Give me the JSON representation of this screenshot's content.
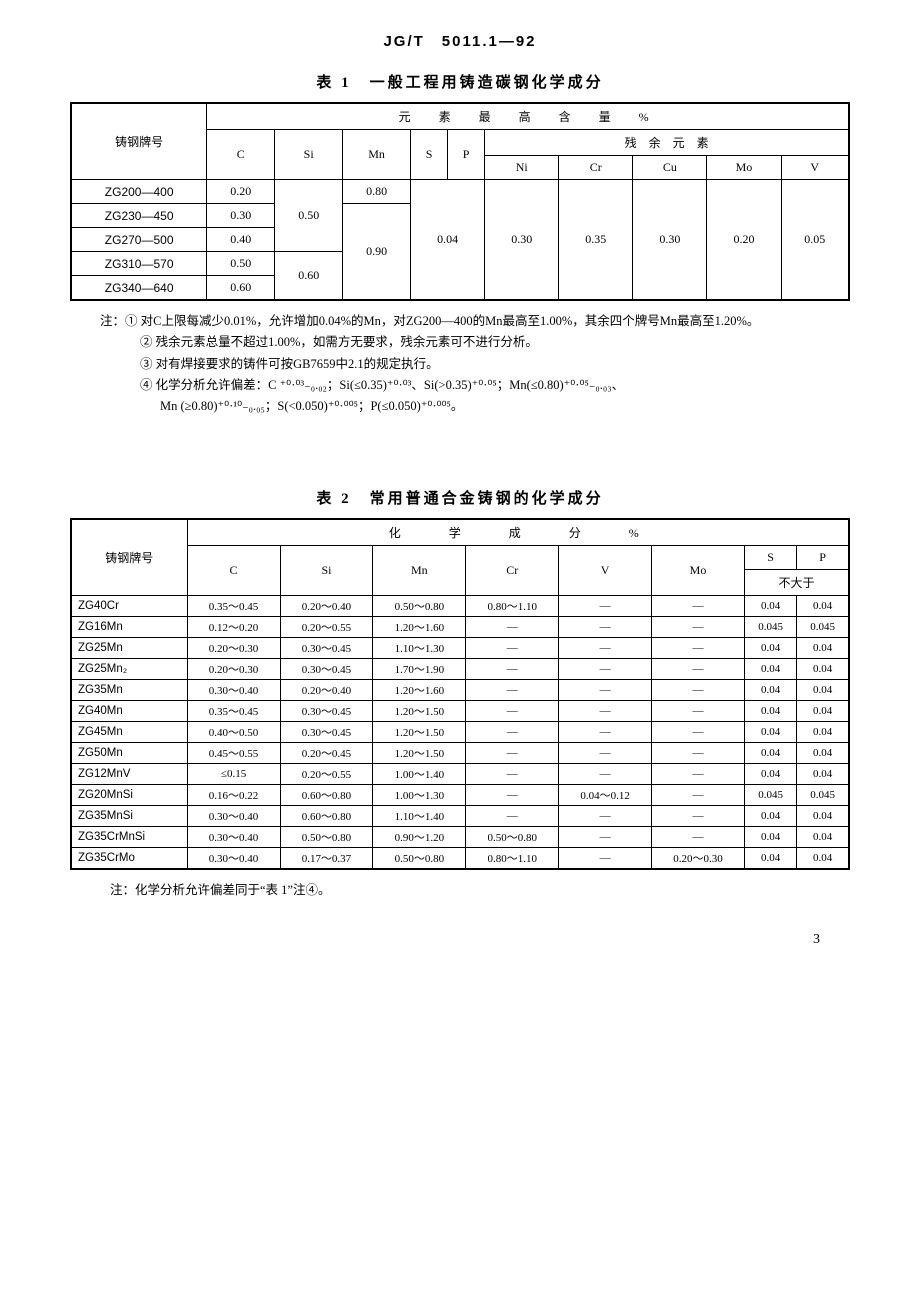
{
  "standard": "JG/T　5011.1—92",
  "table1": {
    "title": "表 1　一般工程用铸造碳钢化学成分",
    "header_super": "元　素　最　高　含　量　%",
    "header_residual": "残　余　元　素",
    "col_grade": "铸钢牌号",
    "cols": [
      "C",
      "Si",
      "Mn",
      "S",
      "P",
      "Ni",
      "Cr",
      "Cu",
      "Mo",
      "V"
    ],
    "rows": [
      {
        "grade": "ZG200—400",
        "C": "0.20",
        "Si": "",
        "Mn": "0.80",
        "S": "",
        "P": "",
        "Ni": "",
        "Cr": "",
        "Cu": "",
        "Mo": "",
        "V": ""
      },
      {
        "grade": "ZG230—450",
        "C": "0.30",
        "Si": "0.50",
        "Mn": "",
        "S": "",
        "P": "",
        "Ni": "",
        "Cr": "",
        "Cu": "",
        "Mo": "",
        "V": ""
      },
      {
        "grade": "ZG270—500",
        "C": "0.40",
        "Si": "",
        "Mn": "0.90",
        "S": "0.04",
        "P": "",
        "Ni": "0.30",
        "Cr": "0.35",
        "Cu": "0.30",
        "Mo": "0.20",
        "V": "0.05"
      },
      {
        "grade": "ZG310—570",
        "C": "0.50",
        "Si": "",
        "Mn": "",
        "S": "",
        "P": "",
        "Ni": "",
        "Cr": "",
        "Cu": "",
        "Mo": "",
        "V": ""
      },
      {
        "grade": "ZG340—640",
        "C": "0.60",
        "Si": "0.60",
        "Mn": "",
        "S": "",
        "P": "",
        "Ni": "",
        "Cr": "",
        "Cu": "",
        "Mo": "",
        "V": ""
      }
    ],
    "notes_label": "注：",
    "notes": [
      "① 对C上限每减少0.01%，允许增加0.04%的Mn，对ZG200—400的Mn最高至1.00%，其余四个牌号Mn最高至1.20%。",
      "② 残余元素总量不超过1.00%，如需方无要求，残余元素可不进行分析。",
      "③ 对有焊接要求的铸件可按GB7659中2.1的规定执行。",
      "④ 化学分析允许偏差：C ⁺⁰·⁰³₋₀.₀₂；Si(≤0.35)⁺⁰·⁰³、Si(>0.35)⁺⁰·⁰⁵；Mn(≤0.80)⁺⁰·⁰⁵₋₀.₀₃、",
      "　Mn (≥0.80)⁺⁰·¹⁰₋₀.₀₅；S(<0.050)⁺⁰·⁰⁰⁵；P(≤0.050)⁺⁰·⁰⁰⁵。"
    ]
  },
  "table2": {
    "title": "表 2　常用普通合金铸钢的化学成分",
    "header_super": "化　　学　　成　　分　　%",
    "col_grade": "铸钢牌号",
    "cols": [
      "C",
      "Si",
      "Mn",
      "Cr",
      "V",
      "Mo",
      "S",
      "P"
    ],
    "nogt": "不大于",
    "rows": [
      {
        "grade": "ZG40Cr",
        "C": "0.35～0.45",
        "Si": "0.20～0.40",
        "Mn": "0.50～0.80",
        "Cr": "0.80～1.10",
        "V": "—",
        "Mo": "—",
        "S": "0.04",
        "P": "0.04"
      },
      {
        "grade": "ZG16Mn",
        "C": "0.12～0.20",
        "Si": "0.20～0.55",
        "Mn": "1.20～1.60",
        "Cr": "—",
        "V": "—",
        "Mo": "—",
        "S": "0.045",
        "P": "0.045"
      },
      {
        "grade": "ZG25Mn",
        "C": "0.20～0.30",
        "Si": "0.30～0.45",
        "Mn": "1.10～1.30",
        "Cr": "—",
        "V": "—",
        "Mo": "—",
        "S": "0.04",
        "P": "0.04"
      },
      {
        "grade": "ZG25Mn₂",
        "C": "0.20～0.30",
        "Si": "0.30～0.45",
        "Mn": "1.70～1.90",
        "Cr": "—",
        "V": "—",
        "Mo": "—",
        "S": "0.04",
        "P": "0.04"
      },
      {
        "grade": "ZG35Mn",
        "C": "0.30～0.40",
        "Si": "0.20～0.40",
        "Mn": "1.20～1.60",
        "Cr": "—",
        "V": "—",
        "Mo": "—",
        "S": "0.04",
        "P": "0.04"
      },
      {
        "grade": "ZG40Mn",
        "C": "0.35～0.45",
        "Si": "0.30～0.45",
        "Mn": "1.20～1.50",
        "Cr": "—",
        "V": "—",
        "Mo": "—",
        "S": "0.04",
        "P": "0.04"
      },
      {
        "grade": "ZG45Mn",
        "C": "0.40～0.50",
        "Si": "0.30～0.45",
        "Mn": "1.20～1.50",
        "Cr": "—",
        "V": "—",
        "Mo": "—",
        "S": "0.04",
        "P": "0.04"
      },
      {
        "grade": "ZG50Mn",
        "C": "0.45～0.55",
        "Si": "0.20～0.45",
        "Mn": "1.20～1.50",
        "Cr": "—",
        "V": "—",
        "Mo": "—",
        "S": "0.04",
        "P": "0.04"
      },
      {
        "grade": "ZG12MnV",
        "C": "≤0.15",
        "Si": "0.20～0.55",
        "Mn": "1.00～1.40",
        "Cr": "—",
        "V": "—",
        "Mo": "—",
        "S": "0.04",
        "P": "0.04"
      },
      {
        "grade": "ZG20MnSi",
        "C": "0.16～0.22",
        "Si": "0.60～0.80",
        "Mn": "1.00～1.30",
        "Cr": "—",
        "V": "0.04～0.12",
        "Mo": "—",
        "S": "0.045",
        "P": "0.045"
      },
      {
        "grade": "ZG35MnSi",
        "C": "0.30～0.40",
        "Si": "0.60～0.80",
        "Mn": "1.10～1.40",
        "Cr": "—",
        "V": "—",
        "Mo": "—",
        "S": "0.04",
        "P": "0.04"
      },
      {
        "grade": "ZG35CrMnSi",
        "C": "0.30～0.40",
        "Si": "0.50～0.80",
        "Mn": "0.90～1.20",
        "Cr": "0.50～0.80",
        "V": "—",
        "Mo": "—",
        "S": "0.04",
        "P": "0.04"
      },
      {
        "grade": "ZG35CrMo",
        "C": "0.30～0.40",
        "Si": "0.17～0.37",
        "Mn": "0.50～0.80",
        "Cr": "0.80～1.10",
        "V": "—",
        "Mo": "0.20～0.30",
        "S": "0.04",
        "P": "0.04"
      }
    ],
    "note": "注：化学分析允许偏差同于“表 1”注④。"
  },
  "page": "3"
}
